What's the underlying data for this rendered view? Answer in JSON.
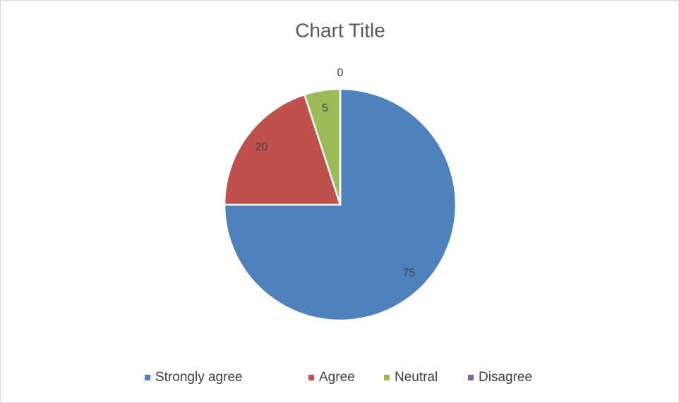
{
  "chart_data": {
    "type": "pie",
    "title": "Chart Title",
    "categories": [
      "Strongly agree",
      "Agree",
      "Neutral",
      "Disagree"
    ],
    "values": [
      75,
      20,
      5,
      0
    ],
    "colors": [
      "#4f81bd",
      "#c0504d",
      "#9bbb59",
      "#8064a2"
    ]
  }
}
